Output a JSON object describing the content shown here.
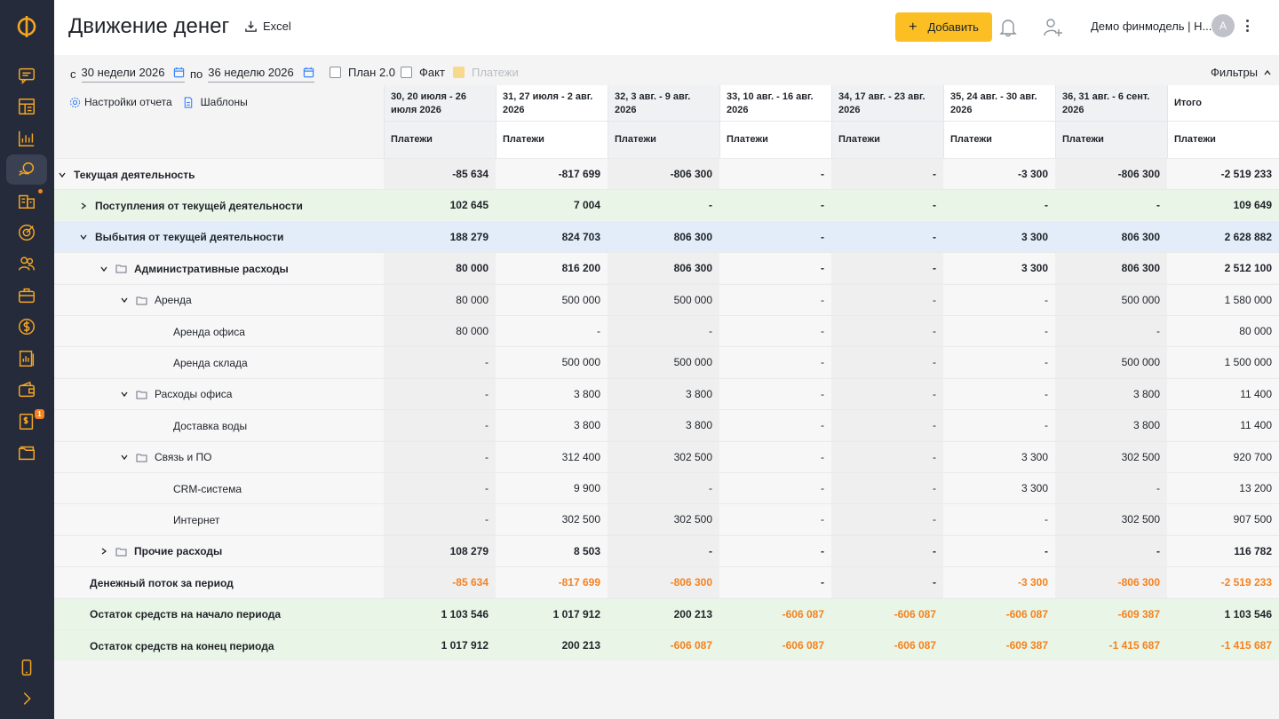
{
  "colors": {
    "accent": "#fbbf24",
    "sidebar": "#252b3b",
    "icon": "#f5a623",
    "negative": "#f5821f",
    "green_row": "#e9f5e6",
    "blue_row": "#e2edf9"
  },
  "sidebar": {
    "logo": "Ф",
    "icons": [
      "chat-icon",
      "dashboard-icon",
      "chart-icon",
      "money-flow-icon",
      "buildings-icon",
      "target-icon",
      "team-icon",
      "briefcase-icon",
      "dollar-icon",
      "report-icon",
      "wallet-icon",
      "invoice-icon",
      "folder-icon",
      "mobile-icon",
      "expand-icon"
    ],
    "badge_count": "1"
  },
  "header": {
    "title": "Движение денег",
    "excel_label": "Excel",
    "add_label": "Добавить",
    "company": "Демо финмодель | Н...",
    "avatar_letter": "A"
  },
  "filters": {
    "from_label": "с",
    "from_value": "30 недели 2026",
    "to_label": "по",
    "to_value": "36 неделю 2026",
    "plan_label": "План 2.0",
    "fact_label": "Факт",
    "payments_label": "Платежи",
    "filters_label": "Фильтры"
  },
  "tools": {
    "settings_label": "Настройки отчета",
    "templates_label": "Шаблоны"
  },
  "columns": [
    {
      "date": "30, 20 июля - 26 июля 2026",
      "sub": "Платежи"
    },
    {
      "date": "31, 27 июля - 2 авг. 2026",
      "sub": "Платежи"
    },
    {
      "date": "32, 3 авг. - 9 авг. 2026",
      "sub": "Платежи"
    },
    {
      "date": "33, 10 авг. - 16 авг. 2026",
      "sub": "Платежи"
    },
    {
      "date": "34, 17 авг. - 23 авг. 2026",
      "sub": "Платежи"
    },
    {
      "date": "35, 24 авг. - 30 авг. 2026",
      "sub": "Платежи"
    },
    {
      "date": "36, 31 авг. - 6 сент. 2026",
      "sub": "Платежи"
    },
    {
      "date": "Итого",
      "sub": "Платежи"
    }
  ],
  "rows": [
    {
      "label": "Текущая деятельность",
      "values": [
        "-85 634",
        "-817 699",
        "-806 300",
        "-",
        "-",
        "-3 300",
        "-806 300",
        "-2 519 233"
      ]
    },
    {
      "label": "Поступления от текущей деятельности",
      "values": [
        "102 645",
        "7 004",
        "-",
        "-",
        "-",
        "-",
        "-",
        "109 649"
      ]
    },
    {
      "label": "Выбытия от текущей деятельности",
      "values": [
        "188 279",
        "824 703",
        "806 300",
        "-",
        "-",
        "3 300",
        "806 300",
        "2 628 882"
      ]
    },
    {
      "label": "Административные расходы",
      "values": [
        "80 000",
        "816 200",
        "806 300",
        "-",
        "-",
        "3 300",
        "806 300",
        "2 512 100"
      ]
    },
    {
      "label": "Аренда",
      "values": [
        "80 000",
        "500 000",
        "500 000",
        "-",
        "-",
        "-",
        "500 000",
        "1 580 000"
      ]
    },
    {
      "label": "Аренда офиса",
      "values": [
        "80 000",
        "-",
        "-",
        "-",
        "-",
        "-",
        "-",
        "80 000"
      ]
    },
    {
      "label": "Аренда склада",
      "values": [
        "-",
        "500 000",
        "500 000",
        "-",
        "-",
        "-",
        "500 000",
        "1 500 000"
      ]
    },
    {
      "label": "Расходы офиса",
      "values": [
        "-",
        "3 800",
        "3 800",
        "-",
        "-",
        "-",
        "3 800",
        "11 400"
      ]
    },
    {
      "label": "Доставка воды",
      "values": [
        "-",
        "3 800",
        "3 800",
        "-",
        "-",
        "-",
        "3 800",
        "11 400"
      ]
    },
    {
      "label": "Связь и ПО",
      "values": [
        "-",
        "312 400",
        "302 500",
        "-",
        "-",
        "3 300",
        "302 500",
        "920 700"
      ]
    },
    {
      "label": "CRM-система",
      "values": [
        "-",
        "9 900",
        "-",
        "-",
        "-",
        "3 300",
        "-",
        "13 200"
      ]
    },
    {
      "label": "Интернет",
      "values": [
        "-",
        "302 500",
        "302 500",
        "-",
        "-",
        "-",
        "302 500",
        "907 500"
      ]
    },
    {
      "label": "Прочие расходы",
      "values": [
        "108 279",
        "8 503",
        "-",
        "-",
        "-",
        "-",
        "-",
        "116 782"
      ]
    },
    {
      "label": "Денежный поток за период",
      "values": [
        "-85 634",
        "-817 699",
        "-806 300",
        "-",
        "-",
        "-3 300",
        "-806 300",
        "-2 519 233"
      ]
    },
    {
      "label": "Остаток средств на начало периода",
      "values": [
        "1 103 546",
        "1 017 912",
        "200 213",
        "-606 087",
        "-606 087",
        "-606 087",
        "-609 387",
        "1 103 546"
      ]
    },
    {
      "label": "Остаток средств на конец периода",
      "values": [
        "1 017 912",
        "200 213",
        "-606 087",
        "-606 087",
        "-606 087",
        "-609 387",
        "-1 415 687",
        "-1 415 687"
      ]
    }
  ]
}
